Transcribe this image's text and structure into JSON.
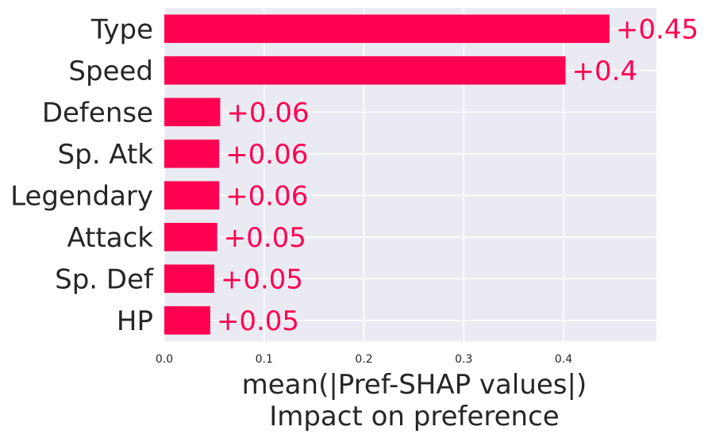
{
  "chart_data": {
    "type": "bar",
    "orientation": "horizontal",
    "categories": [
      "Type",
      "Speed",
      "Defense",
      "Sp. Atk",
      "Legendary",
      "Attack",
      "Sp. Def",
      "HP"
    ],
    "values": [
      0.446,
      0.402,
      0.056,
      0.055,
      0.055,
      0.053,
      0.05,
      0.046
    ],
    "value_labels": [
      "+0.45",
      "+0.4",
      "+0.06",
      "+0.06",
      "+0.06",
      "+0.05",
      "+0.05",
      "+0.05"
    ],
    "xlabel": "mean(|Pref-SHAP values|)",
    "xlabel_line2": "Impact on preference",
    "x_ticks": [
      "0.0",
      "0.1",
      "0.2",
      "0.3",
      "0.4"
    ],
    "x_tick_values": [
      0.0,
      0.1,
      0.2,
      0.3,
      0.4
    ],
    "xlim": [
      0,
      0.493
    ],
    "grid": true,
    "colors": {
      "bar": "#ff0051",
      "value_label": "#ff0051",
      "plot_background": "#eaeaf2",
      "grid": "#ffffff"
    }
  }
}
